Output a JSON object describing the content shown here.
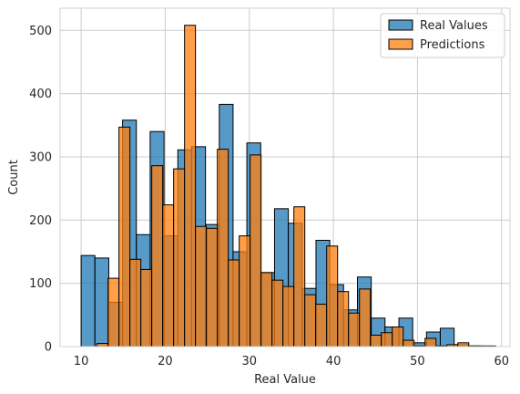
{
  "chart_data": {
    "type": "histogram",
    "xlabel": "Real Value",
    "ylabel": "Count",
    "xlim": [
      7.5,
      61
    ],
    "ylim": [
      0,
      535
    ],
    "x_ticks": [
      10,
      20,
      30,
      40,
      50,
      60
    ],
    "y_ticks": [
      0,
      100,
      200,
      300,
      400,
      500
    ],
    "grid": true,
    "legend_placement": "top-right",
    "series": [
      {
        "name": "Real Values",
        "color": "#1f77b4",
        "alpha": 0.75,
        "bins": [
          {
            "x0": 10.0,
            "x1": 11.64,
            "count": 144
          },
          {
            "x0": 11.64,
            "x1": 13.29,
            "count": 140
          },
          {
            "x0": 13.29,
            "x1": 14.93,
            "count": 70
          },
          {
            "x0": 14.93,
            "x1": 16.57,
            "count": 358
          },
          {
            "x0": 16.57,
            "x1": 18.21,
            "count": 177
          },
          {
            "x0": 18.21,
            "x1": 19.86,
            "count": 340
          },
          {
            "x0": 19.86,
            "x1": 21.5,
            "count": 175
          },
          {
            "x0": 21.5,
            "x1": 23.14,
            "count": 311
          },
          {
            "x0": 23.14,
            "x1": 24.79,
            "count": 316
          },
          {
            "x0": 24.79,
            "x1": 26.43,
            "count": 193
          },
          {
            "x0": 26.43,
            "x1": 28.07,
            "count": 383
          },
          {
            "x0": 28.07,
            "x1": 29.71,
            "count": 150
          },
          {
            "x0": 29.71,
            "x1": 31.36,
            "count": 322
          },
          {
            "x0": 31.36,
            "x1": 33.0,
            "count": 117
          },
          {
            "x0": 33.0,
            "x1": 34.64,
            "count": 218
          },
          {
            "x0": 34.64,
            "x1": 36.29,
            "count": 195
          },
          {
            "x0": 36.29,
            "x1": 37.93,
            "count": 92
          },
          {
            "x0": 37.93,
            "x1": 39.57,
            "count": 168
          },
          {
            "x0": 39.57,
            "x1": 41.21,
            "count": 98
          },
          {
            "x0": 41.21,
            "x1": 42.86,
            "count": 58
          },
          {
            "x0": 42.86,
            "x1": 44.5,
            "count": 110
          },
          {
            "x0": 44.5,
            "x1": 46.14,
            "count": 45
          },
          {
            "x0": 46.14,
            "x1": 47.79,
            "count": 31
          },
          {
            "x0": 47.79,
            "x1": 49.43,
            "count": 45
          },
          {
            "x0": 49.43,
            "x1": 51.07,
            "count": 6
          },
          {
            "x0": 51.07,
            "x1": 52.71,
            "count": 23
          },
          {
            "x0": 52.71,
            "x1": 54.36,
            "count": 29
          },
          {
            "x0": 54.36,
            "x1": 56.0,
            "count": 3
          },
          {
            "x0": 56.0,
            "x1": 57.64,
            "count": 1
          },
          {
            "x0": 57.64,
            "x1": 59.29,
            "count": 1
          }
        ]
      },
      {
        "name": "Predictions",
        "color": "#ff7f0e",
        "alpha": 0.75,
        "bins": [
          {
            "x0": 11.9,
            "x1": 13.2,
            "count": 5
          },
          {
            "x0": 13.2,
            "x1": 14.5,
            "count": 108
          },
          {
            "x0": 14.5,
            "x1": 15.8,
            "count": 347
          },
          {
            "x0": 15.8,
            "x1": 17.1,
            "count": 138
          },
          {
            "x0": 17.1,
            "x1": 18.4,
            "count": 122
          },
          {
            "x0": 18.4,
            "x1": 19.7,
            "count": 286
          },
          {
            "x0": 19.7,
            "x1": 21.0,
            "count": 224
          },
          {
            "x0": 21.0,
            "x1": 22.3,
            "count": 281
          },
          {
            "x0": 22.3,
            "x1": 23.6,
            "count": 508
          },
          {
            "x0": 23.6,
            "x1": 24.9,
            "count": 190
          },
          {
            "x0": 24.9,
            "x1": 26.2,
            "count": 187
          },
          {
            "x0": 26.2,
            "x1": 27.5,
            "count": 312
          },
          {
            "x0": 27.5,
            "x1": 28.8,
            "count": 137
          },
          {
            "x0": 28.8,
            "x1": 30.1,
            "count": 175
          },
          {
            "x0": 30.1,
            "x1": 31.4,
            "count": 303
          },
          {
            "x0": 31.4,
            "x1": 32.7,
            "count": 117
          },
          {
            "x0": 32.7,
            "x1": 34.0,
            "count": 105
          },
          {
            "x0": 34.0,
            "x1": 35.3,
            "count": 95
          },
          {
            "x0": 35.3,
            "x1": 36.6,
            "count": 221
          },
          {
            "x0": 36.6,
            "x1": 37.9,
            "count": 82
          },
          {
            "x0": 37.9,
            "x1": 39.2,
            "count": 67
          },
          {
            "x0": 39.2,
            "x1": 40.5,
            "count": 159
          },
          {
            "x0": 40.5,
            "x1": 41.8,
            "count": 87
          },
          {
            "x0": 41.8,
            "x1": 43.1,
            "count": 53
          },
          {
            "x0": 43.1,
            "x1": 44.4,
            "count": 91
          },
          {
            "x0": 44.4,
            "x1": 45.7,
            "count": 18
          },
          {
            "x0": 45.7,
            "x1": 47.0,
            "count": 22
          },
          {
            "x0": 47.0,
            "x1": 48.3,
            "count": 31
          },
          {
            "x0": 48.3,
            "x1": 49.6,
            "count": 10
          },
          {
            "x0": 49.6,
            "x1": 50.9,
            "count": 1
          },
          {
            "x0": 50.9,
            "x1": 52.2,
            "count": 13
          },
          {
            "x0": 52.2,
            "x1": 53.5,
            "count": 1
          },
          {
            "x0": 53.5,
            "x1": 54.8,
            "count": 3
          },
          {
            "x0": 54.8,
            "x1": 56.1,
            "count": 6
          },
          {
            "x0": 56.1,
            "x1": 57.4,
            "count": 1
          }
        ]
      }
    ]
  }
}
